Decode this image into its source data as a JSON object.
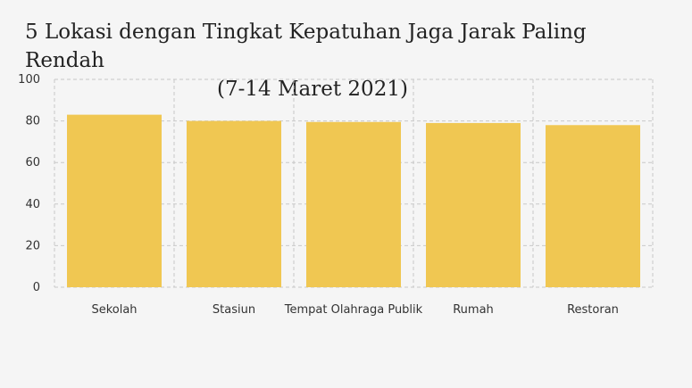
{
  "chart_data": {
    "type": "bar",
    "title": "5 Lokasi dengan Tingkat Kepatuhan Jaga Jarak Paling Rendah",
    "subtitle": "(7-14 Maret 2021)",
    "categories": [
      "Sekolah",
      "Stasiun",
      "Tempat Olahraga Publik",
      "Rumah",
      "Restoran"
    ],
    "values": [
      83,
      80,
      79.5,
      79,
      78
    ],
    "xlabel": "",
    "ylabel": "",
    "ylim": [
      0,
      100
    ],
    "yticks": [
      0,
      20,
      40,
      60,
      80,
      100
    ],
    "grid": true,
    "bar_color": "#f0c752",
    "grid_color": "#c8c8c8"
  }
}
